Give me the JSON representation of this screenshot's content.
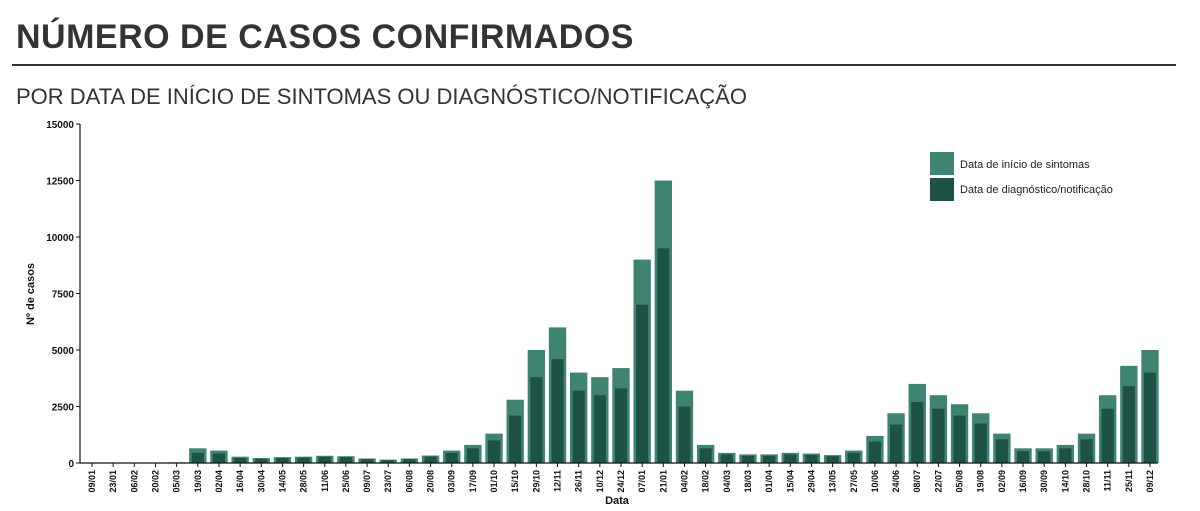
{
  "header": {
    "title": "NÚMERO DE CASOS CONFIRMADOS",
    "subtitle": "POR DATA DE INÍCIO DE SINTOMAS OU DIAGNÓSTICO/NOTIFICAÇÃO"
  },
  "colors": {
    "symptoms": "#3f8371",
    "diagnosis": "#1f5247",
    "axis": "#111111"
  },
  "chart_data": {
    "type": "bar",
    "xlabel": "Data",
    "ylabel": "Nº de casos",
    "ylim": [
      0,
      15000
    ],
    "yticks": [
      0,
      2500,
      5000,
      7500,
      10000,
      12500,
      15000
    ],
    "categories": [
      "09/01",
      "23/01",
      "06/02",
      "20/02",
      "05/03",
      "19/03",
      "02/04",
      "16/04",
      "30/04",
      "14/05",
      "28/05",
      "11/06",
      "25/06",
      "09/07",
      "23/07",
      "06/08",
      "20/08",
      "03/09",
      "17/09",
      "01/10",
      "15/10",
      "29/10",
      "12/11",
      "26/11",
      "10/12",
      "24/12",
      "07/01",
      "21/01",
      "04/02",
      "18/02",
      "04/03",
      "18/03",
      "01/04",
      "15/04",
      "29/04",
      "13/05",
      "27/05",
      "10/06",
      "24/06",
      "08/07",
      "22/07",
      "05/08",
      "19/08",
      "02/09",
      "16/09",
      "30/09",
      "14/10",
      "28/10",
      "11/11",
      "25/11",
      "09/12"
    ],
    "series": [
      {
        "name": "Data de início de sintomas",
        "values": [
          0,
          0,
          0,
          0,
          30,
          650,
          550,
          280,
          220,
          260,
          280,
          320,
          300,
          200,
          150,
          200,
          330,
          550,
          800,
          1300,
          2800,
          5000,
          6000,
          4000,
          3800,
          4200,
          9000,
          12500,
          3200,
          800,
          450,
          380,
          380,
          450,
          420,
          350,
          550,
          1200,
          2200,
          3500,
          3000,
          2600,
          2200,
          1300,
          650,
          650,
          800,
          1300,
          3000,
          4300,
          5000
        ]
      },
      {
        "name": "Data de diagnóstico/notificação",
        "values": [
          0,
          0,
          0,
          0,
          15,
          450,
          420,
          220,
          180,
          220,
          230,
          270,
          260,
          170,
          120,
          170,
          280,
          450,
          650,
          1000,
          2100,
          3800,
          4600,
          3200,
          3000,
          3300,
          7000,
          9500,
          2500,
          650,
          380,
          320,
          320,
          380,
          350,
          300,
          450,
          950,
          1700,
          2700,
          2400,
          2100,
          1750,
          1050,
          520,
          520,
          650,
          1050,
          2400,
          3400,
          4000
        ]
      }
    ],
    "legend_position": "top-right"
  }
}
